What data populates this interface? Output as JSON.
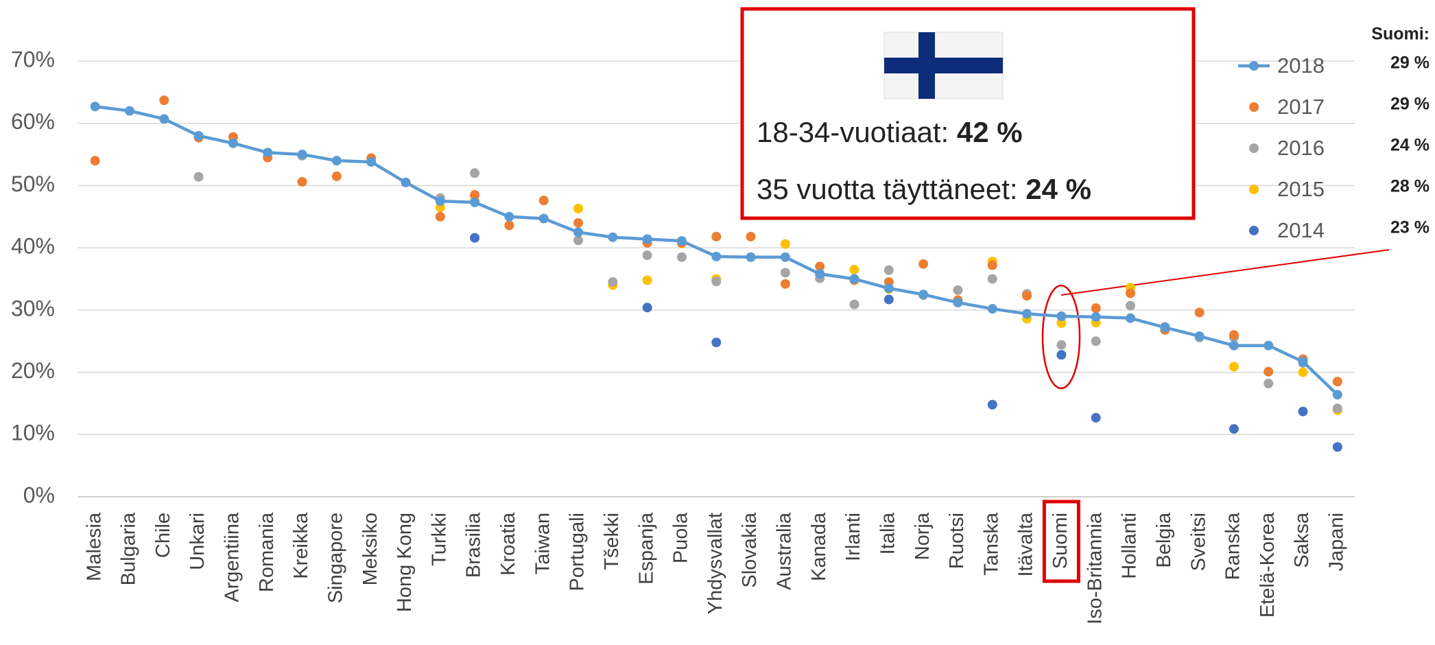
{
  "chart_data": {
    "type": "line",
    "categories": [
      "Malesia",
      "Bulgaria",
      "Chile",
      "Unkari",
      "Argentiina",
      "Romania",
      "Kreikka",
      "Singapore",
      "Meksiko",
      "Hong Kong",
      "Turkki",
      "Brasilia",
      "Kroatia",
      "Taiwan",
      "Portugali",
      "Tšekki",
      "Espanja",
      "Puola",
      "Yhdysvallat",
      "Slovakia",
      "Australia",
      "Kanada",
      "Irlanti",
      "Italia",
      "Norja",
      "Ruotsi",
      "Tanska",
      "Itävalta",
      "Suomi",
      "Iso-Britannia",
      "Hollanti",
      "Belgia",
      "Sveitsi",
      "Ranska",
      "Etelä-Korea",
      "Saksa",
      "Japani"
    ],
    "series": [
      {
        "name": "2018",
        "color": "#5b9bd5",
        "mode": "line",
        "values": [
          62.7,
          62,
          60.7,
          58,
          56.8,
          55.3,
          55,
          54,
          53.8,
          50.5,
          47.5,
          47.3,
          45,
          44.7,
          42.5,
          41.7,
          41.4,
          41.1,
          38.6,
          38.5,
          38.5,
          35.8,
          35,
          33.5,
          32.5,
          31.2,
          30.2,
          29.4,
          29,
          28.9,
          28.7,
          27.2,
          25.8,
          24.3,
          24.3,
          21.7,
          16.4
        ]
      },
      {
        "name": "2017",
        "color": "#ed7d31",
        "mode": "markers",
        "values": [
          54,
          null,
          63.7,
          57.7,
          57.8,
          54.5,
          50.6,
          51.5,
          54.4,
          50.5,
          45,
          48.5,
          43.6,
          47.6,
          44,
          null,
          40.8,
          40.8,
          41.8,
          41.8,
          34.2,
          37,
          34.8,
          34.5,
          37.4,
          31.6,
          37.2,
          32.3,
          29,
          30.3,
          32.7,
          26.8,
          29.6,
          26,
          20.1,
          22.1,
          18.5
        ]
      },
      {
        "name": "2016",
        "color": "#a5a5a5",
        "mode": "markers",
        "values": [
          null,
          null,
          null,
          51.4,
          null,
          null,
          54.8,
          null,
          null,
          null,
          48,
          52,
          null,
          null,
          41.2,
          34.5,
          38.8,
          38.5,
          34.6,
          null,
          36,
          35.1,
          30.9,
          36.4,
          32.4,
          33.2,
          35,
          32.6,
          24.4,
          25,
          30.7,
          27.3,
          25.6,
          25.6,
          18.2,
          21.5,
          14.2
        ]
      },
      {
        "name": "2015",
        "color": "#ffc000",
        "mode": "markers",
        "values": [
          null,
          null,
          null,
          null,
          null,
          null,
          null,
          null,
          null,
          null,
          46.5,
          47.5,
          null,
          null,
          46.3,
          34,
          34.8,
          40.7,
          35,
          null,
          40.6,
          null,
          36.5,
          33.4,
          null,
          null,
          37.8,
          28.6,
          27.9,
          28,
          33.6,
          null,
          null,
          20.9,
          null,
          20,
          13.9
        ]
      },
      {
        "name": "2014",
        "color": "#4472c4",
        "mode": "markers",
        "values": [
          null,
          null,
          null,
          null,
          null,
          null,
          null,
          null,
          null,
          null,
          null,
          41.6,
          null,
          null,
          null,
          null,
          30.4,
          null,
          24.8,
          null,
          null,
          null,
          null,
          31.7,
          null,
          null,
          14.8,
          null,
          22.8,
          12.7,
          null,
          null,
          null,
          10.9,
          null,
          13.7,
          8
        ]
      }
    ],
    "ylim": [
      0,
      70
    ],
    "yticks": [
      {
        "value": 0,
        "label": "0%"
      },
      {
        "value": 10,
        "label": "10%"
      },
      {
        "value": 20,
        "label": "20%"
      },
      {
        "value": 30,
        "label": "30%"
      },
      {
        "value": 40,
        "label": "40%"
      },
      {
        "value": 50,
        "label": "50%"
      },
      {
        "value": 60,
        "label": "60%"
      },
      {
        "value": 70,
        "label": "70%"
      }
    ],
    "grid": true,
    "highlight_category": 28,
    "annotations": {
      "box_lines": [
        {
          "label": "18-34-vuotiaat:",
          "value": "42 %"
        },
        {
          "label": "35 vuotta täyttäneet:",
          "value": "24 %"
        }
      ],
      "side_title": "Suomi:",
      "side_values": [
        "29 %",
        "29 %",
        "24 %",
        "28 %",
        "23 %"
      ]
    }
  }
}
